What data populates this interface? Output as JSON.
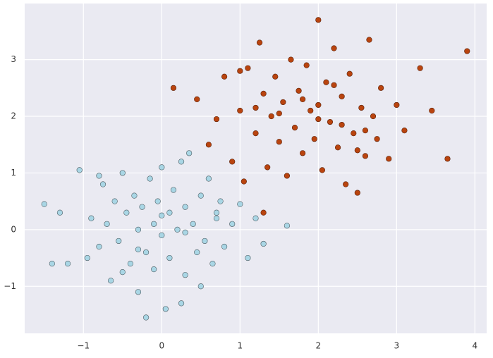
{
  "chart_data": {
    "type": "scatter",
    "xlim": [
      -1.75,
      4.15
    ],
    "ylim": [
      -1.83,
      3.99
    ],
    "xticks": [
      {
        "value": -1,
        "label": "−1"
      },
      0,
      1,
      2,
      3,
      4
    ],
    "yticks": [
      {
        "value": -1,
        "label": "−1"
      },
      0,
      1,
      2,
      3
    ],
    "grid": true,
    "series": [
      {
        "color": "#a9d6e5",
        "edgecolor": "#4a5a60",
        "x": [
          -1.5,
          -1.3,
          -1.2,
          -1.05,
          -0.95,
          -0.9,
          -0.8,
          -0.75,
          -0.7,
          -0.65,
          -0.6,
          -0.55,
          -0.5,
          -0.45,
          -0.4,
          -0.35,
          -0.3,
          -0.3,
          -0.25,
          -0.2,
          -0.15,
          -0.1,
          -0.1,
          -0.05,
          0,
          0,
          0.05,
          0.1,
          0.1,
          0.15,
          0.2,
          0.25,
          0.3,
          0.3,
          0.35,
          0.4,
          0.45,
          0.5,
          0.55,
          0.6,
          0.65,
          0.7,
          0.75,
          0.8,
          0.9,
          1.0,
          1.1,
          1.2,
          1.3,
          1.6,
          -0.2,
          0.25,
          -1.4,
          -0.8,
          0.5,
          -0.5,
          0.0,
          0.3,
          -0.3,
          0.7
        ],
        "y": [
          0.45,
          0.3,
          -0.6,
          1.05,
          -0.5,
          0.2,
          -0.3,
          0.8,
          0.1,
          -0.9,
          0.5,
          -0.2,
          1.0,
          0.3,
          -0.6,
          0.6,
          0.0,
          -1.1,
          0.4,
          -0.4,
          0.9,
          0.1,
          -0.7,
          0.5,
          -0.1,
          1.1,
          -1.4,
          0.3,
          -0.5,
          0.7,
          0.0,
          -1.3,
          0.4,
          -0.8,
          1.35,
          0.1,
          -0.4,
          0.6,
          -0.2,
          0.9,
          -0.6,
          0.2,
          0.5,
          -0.3,
          0.1,
          0.45,
          -0.5,
          0.2,
          -0.25,
          0.07,
          -1.55,
          1.2,
          -0.6,
          0.95,
          -1.0,
          -0.75,
          0.25,
          -0.05,
          -0.35,
          0.3
        ]
      },
      {
        "color": "#b9440f",
        "edgecolor": "#5a2008",
        "x": [
          0.15,
          0.45,
          0.6,
          0.7,
          0.8,
          0.9,
          1.0,
          1.05,
          1.1,
          1.2,
          1.25,
          1.3,
          1.35,
          1.4,
          1.45,
          1.5,
          1.55,
          1.6,
          1.65,
          1.7,
          1.75,
          1.8,
          1.85,
          1.9,
          1.95,
          2.0,
          2.0,
          2.05,
          2.1,
          2.15,
          2.2,
          2.25,
          2.3,
          2.35,
          2.4,
          2.45,
          2.5,
          2.55,
          2.6,
          2.65,
          2.7,
          2.75,
          2.8,
          2.9,
          3.0,
          3.1,
          3.3,
          3.45,
          3.65,
          3.9,
          2.0,
          2.3,
          1.2,
          1.8,
          2.6,
          1.5,
          2.2,
          1.0,
          2.5,
          1.3
        ],
        "y": [
          2.5,
          2.3,
          1.5,
          1.95,
          2.7,
          1.2,
          2.1,
          0.85,
          2.85,
          1.7,
          3.3,
          2.4,
          1.1,
          2.0,
          2.7,
          1.55,
          2.25,
          0.95,
          3.0,
          1.8,
          2.45,
          1.35,
          2.9,
          2.1,
          1.6,
          3.7,
          2.2,
          1.05,
          2.6,
          1.9,
          3.2,
          1.45,
          2.35,
          0.8,
          2.75,
          1.7,
          0.65,
          2.15,
          1.3,
          3.35,
          2.0,
          1.6,
          2.5,
          1.25,
          2.2,
          1.75,
          2.85,
          2.1,
          1.25,
          3.15,
          1.95,
          1.85,
          2.15,
          2.3,
          1.75,
          2.05,
          2.55,
          2.8,
          1.4,
          0.3
        ]
      }
    ]
  }
}
